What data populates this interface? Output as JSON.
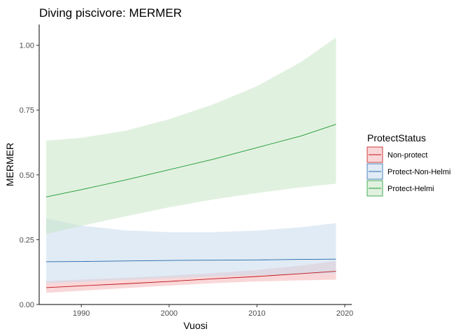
{
  "chart_data": {
    "type": "line",
    "title": "Diving piscivore: MERMER",
    "xlabel": "Vuosi",
    "ylabel": "MERMER",
    "xlim": [
      1985.2,
      2020.8
    ],
    "ylim": [
      0.0,
      1.08
    ],
    "x_ticks": [
      1990,
      2000,
      2010,
      2020
    ],
    "y_ticks": [
      0.0,
      0.25,
      0.5,
      0.75,
      1.0
    ],
    "y_tick_labels": [
      "0.00",
      "0.25",
      "0.50",
      "0.75",
      "1.00"
    ],
    "grid": false,
    "legend": {
      "title": "ProtectStatus",
      "position": "right"
    },
    "series": [
      {
        "name": "Non-protect",
        "color": "#c0131a",
        "fill": "#f4b6b8",
        "x": [
          1986,
          1990,
          1995,
          2000,
          2005,
          2010,
          2015,
          2019
        ],
        "y": [
          0.065,
          0.072,
          0.08,
          0.089,
          0.099,
          0.108,
          0.119,
          0.128
        ],
        "lower": [
          0.045,
          0.053,
          0.063,
          0.073,
          0.082,
          0.089,
          0.093,
          0.096
        ],
        "upper": [
          0.09,
          0.096,
          0.103,
          0.111,
          0.121,
          0.133,
          0.15,
          0.168
        ]
      },
      {
        "name": "Protect-Non-Helmi",
        "color": "#2166ac",
        "fill": "#c9dbec",
        "x": [
          1986,
          1990,
          1995,
          2000,
          2005,
          2010,
          2015,
          2019
        ],
        "y": [
          0.165,
          0.166,
          0.168,
          0.17,
          0.171,
          0.172,
          0.174,
          0.175
        ],
        "lower": [
          0.082,
          0.088,
          0.095,
          0.102,
          0.108,
          0.113,
          0.117,
          0.12
        ],
        "upper": [
          0.332,
          0.304,
          0.286,
          0.279,
          0.279,
          0.285,
          0.298,
          0.314
        ]
      },
      {
        "name": "Protect-Helmi",
        "color": "#1a9a2e",
        "fill": "#c8e6c6",
        "x": [
          1986,
          1990,
          1995,
          2000,
          2005,
          2010,
          2015,
          2019
        ],
        "y": [
          0.415,
          0.443,
          0.48,
          0.52,
          0.56,
          0.605,
          0.65,
          0.695
        ],
        "lower": [
          0.272,
          0.303,
          0.34,
          0.375,
          0.405,
          0.43,
          0.452,
          0.466
        ],
        "upper": [
          0.632,
          0.643,
          0.67,
          0.715,
          0.772,
          0.842,
          0.935,
          1.03
        ]
      }
    ]
  }
}
